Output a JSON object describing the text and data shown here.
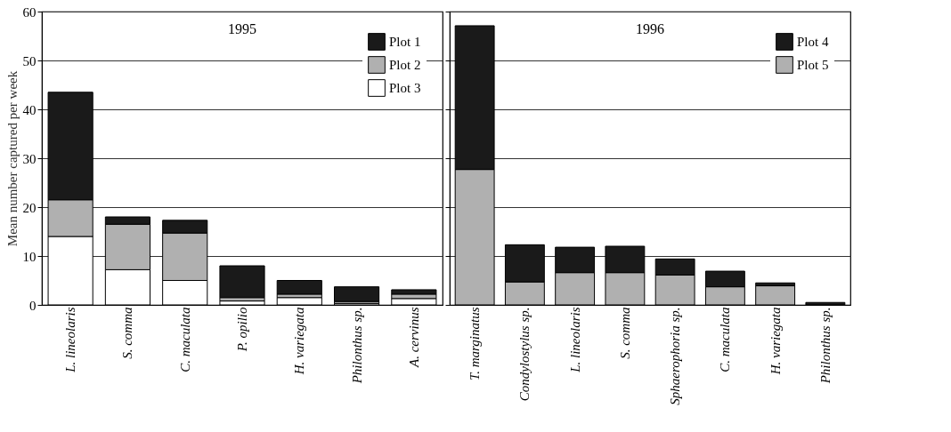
{
  "chart_data": [
    {
      "type": "bar",
      "title": "1995",
      "ylabel": "Mean number captured per week",
      "stacked": true,
      "categories": [
        "L. lineolaris",
        "S. comma",
        "C. maculata",
        "P. opilio",
        "H. variegata",
        "Philonthus sp.",
        "A. cervinus"
      ],
      "series": [
        {
          "name": "Plot 3",
          "color": "#ffffff",
          "values": [
            14,
            7.2,
            5,
            0.8,
            1.5,
            0.3,
            1.3
          ]
        },
        {
          "name": "Plot 2",
          "color": "#b0b0b0",
          "values": [
            7.5,
            9.3,
            9.7,
            0.7,
            0.7,
            0.4,
            0.9
          ]
        },
        {
          "name": "Plot 1",
          "color": "#1a1a1a",
          "values": [
            22,
            1.5,
            2.6,
            6.5,
            2.8,
            3.0,
            0.9
          ]
        }
      ],
      "ylim": [
        0,
        60
      ],
      "yticks": [
        0,
        10,
        20,
        30,
        40,
        50,
        60
      ],
      "grid": "y",
      "legend": "top right"
    },
    {
      "type": "bar",
      "title": "1996",
      "stacked": true,
      "categories": [
        "T. marginatus",
        "Condylostylus sp.",
        "L. lineolaris",
        "S. comma",
        "Sphaerophoria sp.",
        "C. maculata",
        "H. variegata",
        "Philonthus sp."
      ],
      "series": [
        {
          "name": "Plot 5",
          "color": "#b0b0b0",
          "values": [
            27.7,
            4.7,
            6.6,
            6.6,
            6.1,
            3.7,
            3.9,
            null
          ]
        },
        {
          "name": "Plot 4",
          "color": "#1a1a1a",
          "values": [
            29.4,
            7.6,
            5.2,
            5.4,
            3.3,
            3.2,
            0.6,
            0.5
          ]
        }
      ],
      "ylim": [
        0,
        60
      ],
      "yticks": [
        0,
        10,
        20,
        30,
        40,
        50,
        60
      ],
      "grid": "y",
      "legend": "top right",
      "tick_labels": "x"
    }
  ]
}
